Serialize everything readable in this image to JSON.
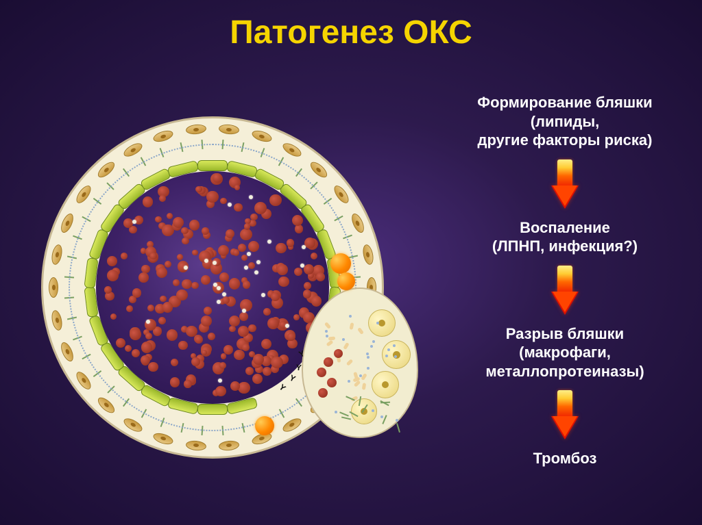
{
  "title": {
    "text": "Патогенез ОКС",
    "color": "#f5d400",
    "fontsize": 48
  },
  "flow": {
    "label_color": "#ffffff",
    "label_fontsize": 22,
    "arrow_gradient": [
      "#ffee88",
      "#ffcc33",
      "#ff6600",
      "#ee2200"
    ],
    "steps": [
      {
        "lines": [
          "Формирование бляшки",
          "(липиды,",
          "другие факторы риска)"
        ]
      },
      {
        "lines": [
          "Воспаление",
          "(ЛПНП, инфекция?)"
        ]
      },
      {
        "lines": [
          "Разрыв бляшки",
          "(макрофаги,",
          "металлопротеиназы)"
        ]
      },
      {
        "lines": [
          "Тромбоз"
        ]
      }
    ]
  },
  "diagram": {
    "outer_fill": "#f5efd8",
    "outer_border": "#c7b893",
    "dash_border": "#8aa6c9",
    "lumen_gradient": [
      "#5a3a8a",
      "#3d2166",
      "#2c1650"
    ],
    "endothelium_color": "#a8c83a",
    "rbc_color": "#a03020",
    "foam_cell_color": "#e8d47a",
    "platelet_color": "#efd29a",
    "whitedot_color": "#f2eedd",
    "fibroblast_color": "#c89a40",
    "orange_ball_color": "#ff8800",
    "plaque_fill": "#f2edd0"
  },
  "background_gradient": [
    "#4a2d7a",
    "#2d1a4d",
    "#1a0d33"
  ]
}
